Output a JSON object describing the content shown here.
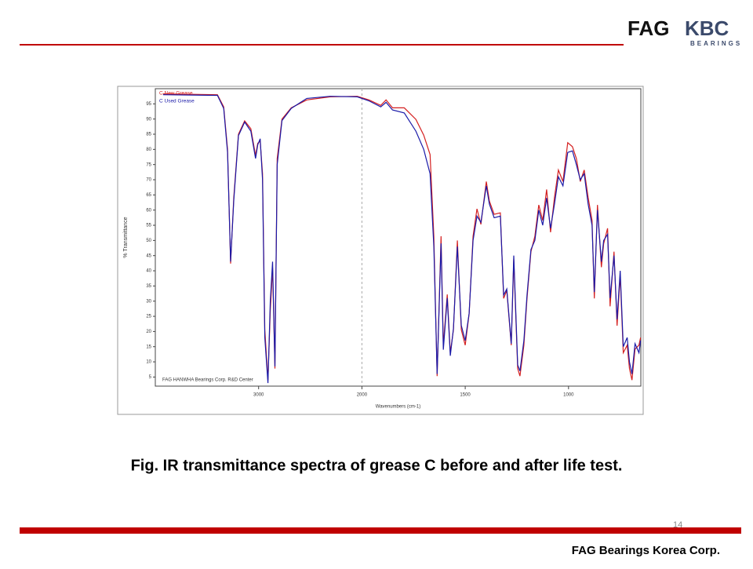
{
  "logo": {
    "brand": "FAG",
    "name": "KBC",
    "tagline": "BEARINGS"
  },
  "caption": "Fig.  IR transmittance spectra of grease C before and after life test.",
  "page_number": "14",
  "footer": "FAG Bearings Korea Corp.",
  "chart_data": {
    "type": "line",
    "y_label": "% Transmittance",
    "x_label": "Wavenumbers (cm-1)",
    "annotation": "FAG HANWHA Bearings Corp. R&D Center",
    "xlim": [
      4000,
      650
    ],
    "x_scale_break": 2000,
    "x_scale_factor": 2,
    "xticks": [
      3000,
      2000,
      1500,
      1000
    ],
    "ylim": [
      2,
      100
    ],
    "yticks": [
      5,
      10,
      15,
      20,
      25,
      30,
      35,
      40,
      45,
      50,
      55,
      60,
      65,
      70,
      75,
      80,
      85,
      90,
      95
    ],
    "legend": "top-left",
    "x": [
      3925,
      3399,
      3338,
      3301,
      3271,
      3241,
      3195,
      3135,
      3075,
      3030,
      3008,
      2985,
      2962,
      2940,
      2910,
      2887,
      2865,
      2842,
      2820,
      2774,
      2684,
      2534,
      2308,
      2045,
      1966,
      1909,
      1883,
      1852,
      1795,
      1739,
      1701,
      1670,
      1652,
      1636,
      1617,
      1606,
      1587,
      1572,
      1557,
      1538,
      1519,
      1500,
      1481,
      1462,
      1443,
      1424,
      1398,
      1383,
      1360,
      1330,
      1314,
      1299,
      1277,
      1265,
      1246,
      1235,
      1216,
      1201,
      1182,
      1163,
      1144,
      1125,
      1106,
      1087,
      1068,
      1049,
      1027,
      1004,
      981,
      962,
      943,
      924,
      905,
      886,
      875,
      860,
      841,
      830,
      811,
      799,
      780,
      765,
      750,
      735,
      716,
      705,
      693,
      678,
      659,
      651
    ],
    "series": [
      {
        "name": "C New Grease",
        "color": "#d42020",
        "values": [
          98.3,
          98,
          94,
          80,
          42.4,
          64,
          85,
          89.4,
          86.8,
          78,
          82,
          82.7,
          72,
          20.6,
          4,
          27,
          41,
          7.8,
          77,
          90,
          93.7,
          96.3,
          97.3,
          97.5,
          96.3,
          94.5,
          96.3,
          93.7,
          93.7,
          89.9,
          84.7,
          78.3,
          51.4,
          5.3,
          51.4,
          15.5,
          32.2,
          13,
          20.6,
          50,
          20.6,
          15.5,
          25.8,
          51.4,
          60.4,
          55.3,
          69.4,
          63,
          58.6,
          59.1,
          30.9,
          33.5,
          15.5,
          43.7,
          7.8,
          5.3,
          15.5,
          30.9,
          46.3,
          51.4,
          61.7,
          56.6,
          66.8,
          52.7,
          64.2,
          73.2,
          69.4,
          82.2,
          80.9,
          77,
          69.4,
          73.2,
          64.2,
          56.6,
          30.9,
          61.7,
          41.2,
          48.9,
          54,
          28.3,
          46.3,
          21.9,
          38.6,
          13,
          15.5,
          7.8,
          4,
          14.2,
          15.5,
          18
        ]
      },
      {
        "name": "C Used Grease",
        "color": "#1a1aa8",
        "values": [
          98,
          97.8,
          93.5,
          79,
          43,
          63,
          84.5,
          89,
          86,
          77,
          81.5,
          83.5,
          70,
          18,
          3,
          30,
          43,
          8.5,
          75,
          89.5,
          93.5,
          96.8,
          97.5,
          97.3,
          96,
          94,
          95.5,
          93,
          92,
          86,
          80,
          72,
          48,
          6,
          49,
          14,
          31,
          12,
          21,
          48,
          22,
          17,
          26,
          50,
          58,
          56,
          68,
          62,
          57.5,
          58,
          32,
          34,
          16,
          45,
          9,
          7,
          17,
          32,
          47,
          50,
          60,
          55,
          64,
          54,
          62,
          71,
          68,
          79,
          79.5,
          75,
          70,
          72,
          62,
          55,
          33,
          60,
          43,
          50,
          52,
          31,
          45,
          24,
          40,
          15,
          18,
          10,
          6,
          16,
          13,
          17
        ]
      }
    ]
  }
}
